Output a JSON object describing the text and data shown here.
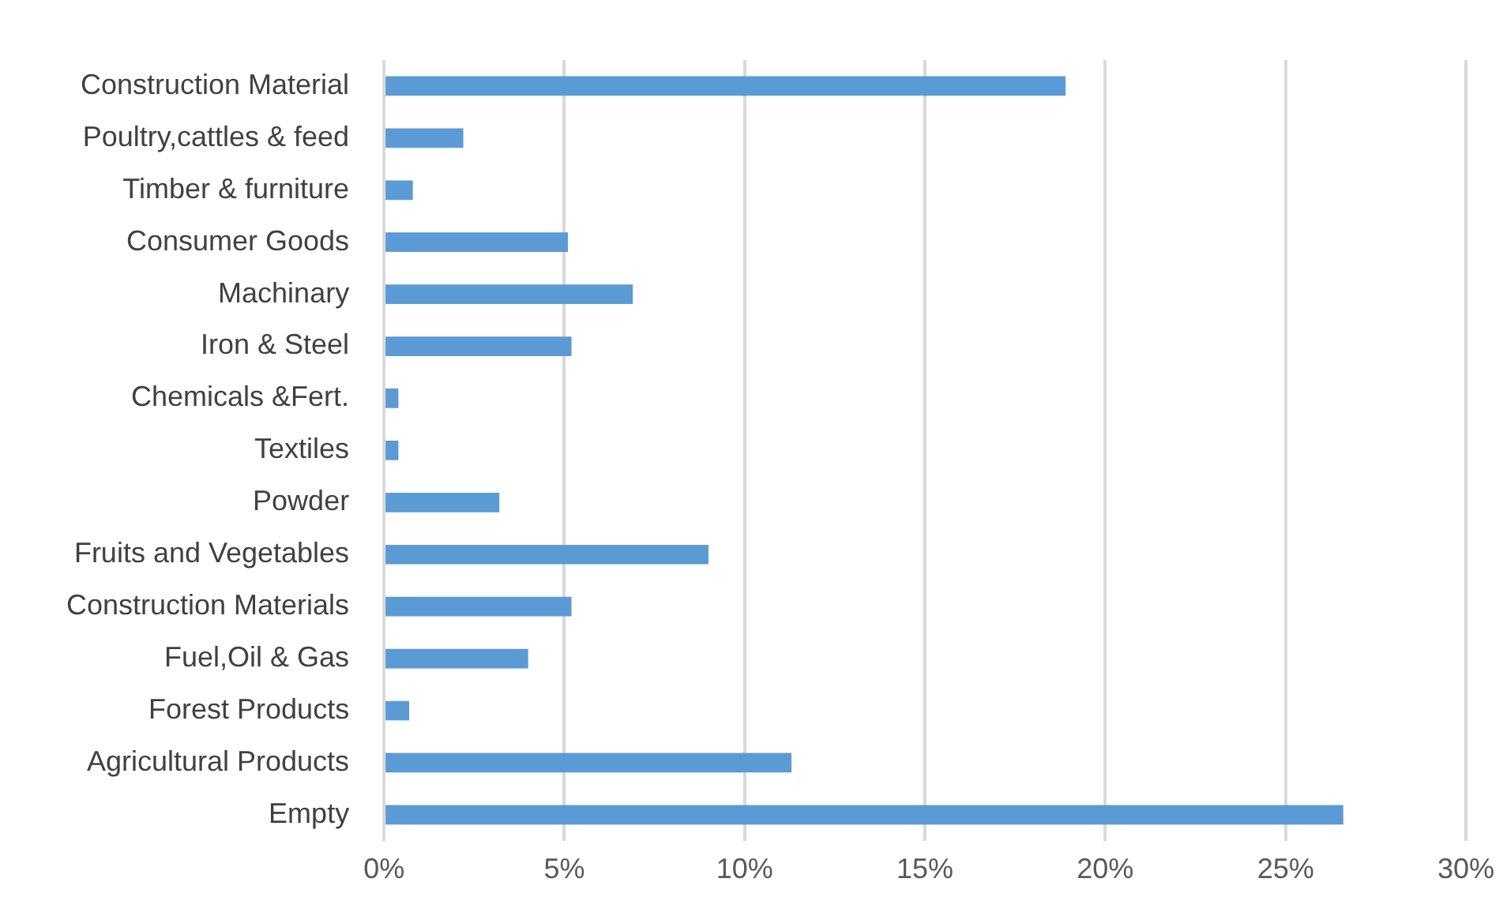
{
  "chart_data": {
    "type": "bar",
    "orientation": "horizontal",
    "categories": [
      "Construction Material",
      "Poultry,cattles & feed",
      "Timber & furniture",
      "Consumer Goods",
      "Machinary",
      "Iron & Steel",
      "Chemicals &Fert.",
      "Textiles",
      "Powder",
      "Fruits and Vegetables",
      "Construction Materials",
      "Fuel,Oil & Gas",
      "Forest Products",
      "Agricultural Products",
      "Empty"
    ],
    "values": [
      18.9,
      2.2,
      0.8,
      5.1,
      6.9,
      5.2,
      0.4,
      0.4,
      3.2,
      9.0,
      5.2,
      4.0,
      0.7,
      11.3,
      26.6
    ],
    "color": "#5b9bd5",
    "xlim": [
      0,
      30
    ],
    "xticks": [
      {
        "value": 0,
        "label": "0%"
      },
      {
        "value": 5,
        "label": "5%"
      },
      {
        "value": 10,
        "label": "10%"
      },
      {
        "value": 15,
        "label": "15%"
      },
      {
        "value": 20,
        "label": "20%"
      },
      {
        "value": 25,
        "label": "25%"
      },
      {
        "value": 30,
        "label": "30%"
      }
    ],
    "grid": "x",
    "legend": false
  }
}
